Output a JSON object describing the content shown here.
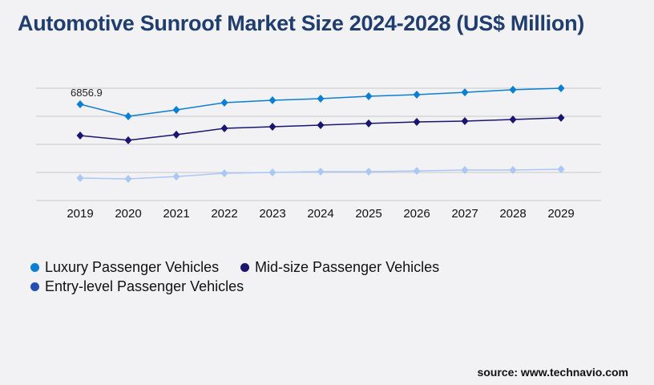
{
  "title": "Automotive Sunroof Market Size 2024-2028 (US$ Million)",
  "source": "source: www.technavio.com",
  "chart_data": {
    "type": "line",
    "title": "Automotive Sunroof Market Size 2024-2028 (US$ Million)",
    "categories": [
      "2019",
      "2020",
      "2021",
      "2022",
      "2023",
      "2024",
      "2025",
      "2026",
      "2027",
      "2028",
      "2029"
    ],
    "ylim": [
      0,
      8000
    ],
    "grid": true,
    "legend_position": "bottom-left",
    "series": [
      {
        "name": "Luxury Passenger Vehicles",
        "color": "#0a7fd4",
        "marker_color": "#0a7fd4",
        "values": [
          6856.9,
          6000,
          6460,
          6970,
          7140,
          7260,
          7430,
          7540,
          7710,
          7890,
          8000
        ]
      },
      {
        "name": "Mid-size Passenger Vehicles",
        "color": "#1a1570",
        "marker_color": "#1a1570",
        "values": [
          4630,
          4290,
          4690,
          5140,
          5260,
          5370,
          5490,
          5600,
          5660,
          5770,
          5890
        ]
      },
      {
        "name": "Entry-level Passenger Vehicles",
        "color": "#a9c8f5",
        "marker_color": "#2350b0",
        "values": [
          1600,
          1540,
          1710,
          1940,
          2000,
          2060,
          2060,
          2110,
          2170,
          2170,
          2230
        ]
      }
    ],
    "annotations": [
      {
        "series": 0,
        "category": "2019",
        "text": "6856.9"
      }
    ]
  }
}
